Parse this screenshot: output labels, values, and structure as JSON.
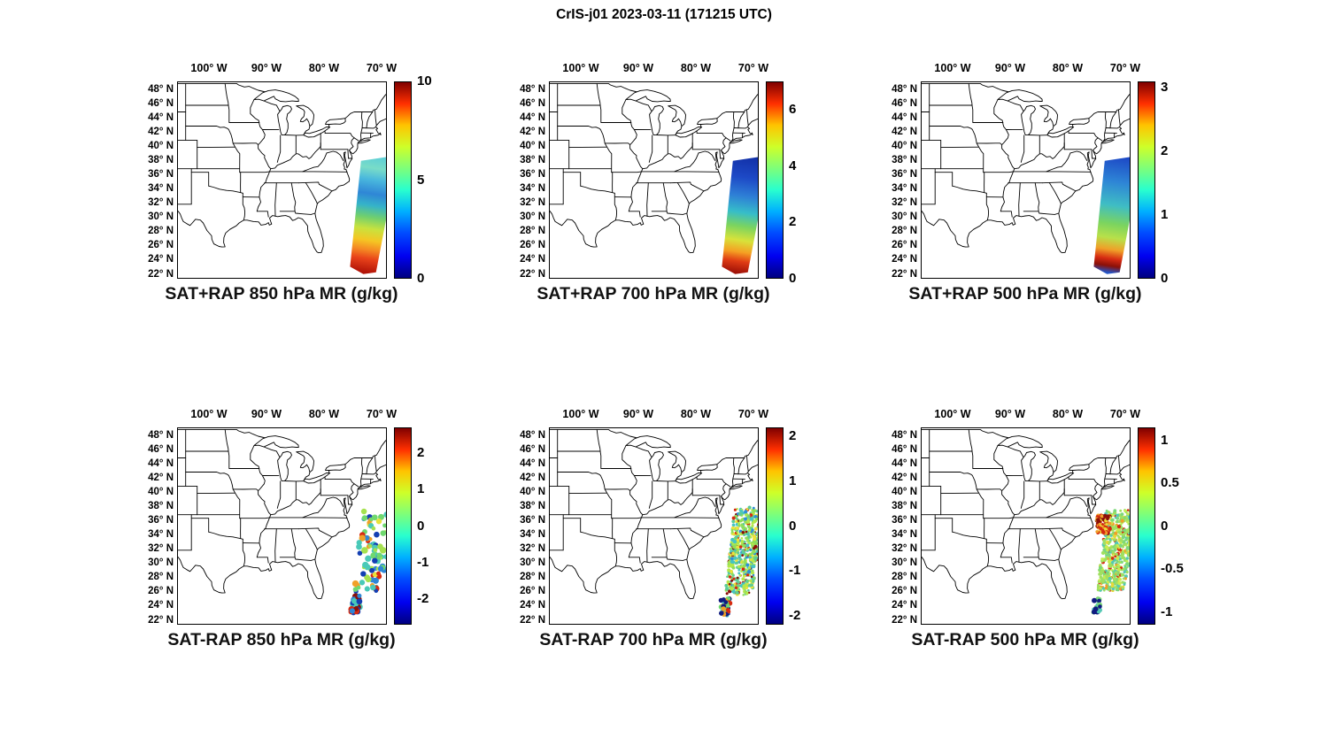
{
  "figure_title": "CrIS-j01 2023-03-11 (171215 UTC)",
  "colormap": "jet",
  "axes": {
    "x_ticks": [
      {
        "lon": -100,
        "label": "100° W"
      },
      {
        "lon": -90,
        "label": "90° W"
      },
      {
        "lon": -80,
        "label": "80° W"
      },
      {
        "lon": -70,
        "label": "70° W"
      }
    ],
    "y_ticks": [
      {
        "lat": 48,
        "label": "48° N"
      },
      {
        "lat": 46,
        "label": "46° N"
      },
      {
        "lat": 44,
        "label": "44° N"
      },
      {
        "lat": 42,
        "label": "42° N"
      },
      {
        "lat": 40,
        "label": "40° N"
      },
      {
        "lat": 38,
        "label": "38° N"
      },
      {
        "lat": 36,
        "label": "36° N"
      },
      {
        "lat": 34,
        "label": "34° N"
      },
      {
        "lat": 32,
        "label": "32° N"
      },
      {
        "lat": 30,
        "label": "30° N"
      },
      {
        "lat": 28,
        "label": "28° N"
      },
      {
        "lat": 26,
        "label": "26° N"
      },
      {
        "lat": 24,
        "label": "24° N"
      },
      {
        "lat": 22,
        "label": "22° N"
      }
    ]
  },
  "panels": [
    {
      "id": "sat-plus-rap-850",
      "label": "SAT+RAP 850 hPa MR (g/kg)",
      "colorbar": {
        "min": 0,
        "max": 10,
        "ticks": [
          {
            "value": 10,
            "label": "10"
          },
          {
            "value": 5,
            "label": "5"
          },
          {
            "value": 0,
            "label": "0"
          }
        ]
      },
      "swath": {
        "render": "gradient",
        "stops": [
          [
            0,
            "#5ecfd6"
          ],
          [
            0.1,
            "#79dcc8"
          ],
          [
            0.2,
            "#49b7dd"
          ],
          [
            0.32,
            "#2f86d6"
          ],
          [
            0.42,
            "#35b3c9"
          ],
          [
            0.52,
            "#6fcf6f"
          ],
          [
            0.62,
            "#c8e23e"
          ],
          [
            0.72,
            "#f5c623"
          ],
          [
            0.8,
            "#f58a23"
          ],
          [
            0.88,
            "#e8421a"
          ],
          [
            1,
            "#b01207"
          ]
        ]
      }
    },
    {
      "id": "sat-plus-rap-700",
      "label": "SAT+RAP 700 hPa MR (g/kg)",
      "colorbar": {
        "min": 0,
        "max": 7,
        "ticks": [
          {
            "value": 6,
            "label": "6"
          },
          {
            "value": 4,
            "label": "4"
          },
          {
            "value": 2,
            "label": "2"
          },
          {
            "value": 0,
            "label": "0"
          }
        ]
      },
      "swath": {
        "render": "gradient",
        "stops": [
          [
            0,
            "#1231a8"
          ],
          [
            0.18,
            "#1d49c6"
          ],
          [
            0.34,
            "#2e7fd6"
          ],
          [
            0.48,
            "#36bdc9"
          ],
          [
            0.6,
            "#7bd45f"
          ],
          [
            0.72,
            "#d8e23a"
          ],
          [
            0.82,
            "#f5a023"
          ],
          [
            0.9,
            "#e03c14"
          ],
          [
            1,
            "#a01108"
          ]
        ]
      }
    },
    {
      "id": "sat-plus-rap-500",
      "label": "SAT+RAP 500 hPa MR (g/kg)",
      "colorbar": {
        "min": 0,
        "max": 3.1,
        "ticks": [
          {
            "value": 3,
            "label": "3"
          },
          {
            "value": 2,
            "label": "2"
          },
          {
            "value": 1,
            "label": "1"
          },
          {
            "value": 0,
            "label": "0"
          }
        ]
      },
      "swath": {
        "render": "gradient",
        "stops": [
          [
            0,
            "#1d49c6"
          ],
          [
            0.22,
            "#2e86d6"
          ],
          [
            0.42,
            "#3fbdc4"
          ],
          [
            0.58,
            "#7bd45f"
          ],
          [
            0.7,
            "#b8e04a"
          ],
          [
            0.8,
            "#f0a028"
          ],
          [
            0.88,
            "#d62a12"
          ],
          [
            0.94,
            "#8a1008"
          ],
          [
            1,
            "#2356c9"
          ]
        ]
      }
    },
    {
      "id": "sat-minus-rap-850",
      "label": "SAT-RAP 850 hPa MR (g/kg)",
      "colorbar": {
        "min": -2.7,
        "max": 2.7,
        "ticks": [
          {
            "value": 2,
            "label": "2"
          },
          {
            "value": 1,
            "label": "1"
          },
          {
            "value": 0,
            "label": "0"
          },
          {
            "value": -1,
            "label": "-1"
          },
          {
            "value": -2,
            "label": "-2"
          }
        ]
      },
      "swath": {
        "render": "dots",
        "seed": 7,
        "field": {
          "count": 95,
          "radius": 2.9,
          "t_range": [
            0.05,
            0.78
          ],
          "palette": [
            [
              "#6fd86f",
              26
            ],
            [
              "#49c9b8",
              18
            ],
            [
              "#a5e14e",
              14
            ],
            [
              "#2f86d6",
              12
            ],
            [
              "#143fb3",
              9
            ],
            [
              "#e8e23a",
              9
            ],
            [
              "#f0a028",
              6
            ],
            [
              "#d62a12",
              6
            ]
          ]
        },
        "patches": [
          {
            "lat": [
              23.2,
              25.6
            ],
            "lon": [
              -75.3,
              -73.7
            ],
            "count": 30,
            "radius": 3.1,
            "palette": [
              [
                "#d62a12",
                26
              ],
              [
                "#8a1008",
                18
              ],
              [
                "#143fb3",
                16
              ],
              [
                "#2f86d6",
                10
              ],
              [
                "#49c9b8",
                15
              ],
              [
                "#6fd86f",
                15
              ]
            ]
          }
        ]
      }
    },
    {
      "id": "sat-minus-rap-700",
      "label": "SAT-RAP 700 hPa MR (g/kg)",
      "colorbar": {
        "min": -2.2,
        "max": 2.2,
        "ticks": [
          {
            "value": 2,
            "label": "2"
          },
          {
            "value": 1,
            "label": "1"
          },
          {
            "value": 0,
            "label": "0"
          },
          {
            "value": -1,
            "label": "-1"
          },
          {
            "value": -2,
            "label": "-2"
          }
        ]
      },
      "swath": {
        "render": "dots",
        "seed": 21,
        "field": {
          "count": 560,
          "radius": 1.7,
          "t_range": [
            0.02,
            0.8
          ],
          "palette": [
            [
              "#8ede5a",
              26
            ],
            [
              "#b4e84a",
              18
            ],
            [
              "#5ecc96",
              15
            ],
            [
              "#46c4c4",
              12
            ],
            [
              "#f0e03a",
              10
            ],
            [
              "#2e8fd8",
              7
            ],
            [
              "#8a1008",
              6
            ],
            [
              "#d42a10",
              6
            ]
          ]
        },
        "patches": [
          {
            "lat": [
              22.8,
              25.2
            ],
            "lon": [
              -75.6,
              -74.0
            ],
            "count": 46,
            "radius": 2.5,
            "palette": [
              [
                "#101b80",
                25
              ],
              [
                "#d62a12",
                20
              ],
              [
                "#f0a028",
                12
              ],
              [
                "#6fd86f",
                23
              ],
              [
                "#46c4c4",
                20
              ]
            ]
          }
        ]
      }
    },
    {
      "id": "sat-minus-rap-500",
      "label": "SAT-RAP 500 hPa MR (g/kg)",
      "colorbar": {
        "min": -1.15,
        "max": 1.15,
        "ticks": [
          {
            "value": 1,
            "label": "1"
          },
          {
            "value": 0.5,
            "label": "0.5"
          },
          {
            "value": 0,
            "label": "0"
          },
          {
            "value": -0.5,
            "label": "-0.5"
          },
          {
            "value": -1,
            "label": "-1"
          }
        ]
      },
      "swath": {
        "render": "dots",
        "seed": 33,
        "field": {
          "count": 560,
          "radius": 1.7,
          "t_range": [
            0.04,
            0.76
          ],
          "palette": [
            [
              "#a0e060",
              32
            ],
            [
              "#7cd87a",
              20
            ],
            [
              "#c8ec50",
              16
            ],
            [
              "#54c8b4",
              12
            ],
            [
              "#e8d838",
              9
            ],
            [
              "#f0a028",
              6
            ],
            [
              "#d42a10",
              5
            ]
          ]
        },
        "patches": [
          {
            "lat": [
              34.3,
              36.9
            ],
            "lon": [
              -74.9,
              -72.6
            ],
            "count": 85,
            "radius": 2.0,
            "palette": [
              [
                "#d42a10",
                40
              ],
              [
                "#8a1008",
                22
              ],
              [
                "#f0a028",
                24
              ],
              [
                "#e8d838",
                14
              ]
            ]
          },
          {
            "lat": [
              23.2,
              25.2
            ],
            "lon": [
              -75.5,
              -74.2
            ],
            "count": 18,
            "radius": 2.7,
            "palette": [
              [
                "#101b80",
                45
              ],
              [
                "#54c8b4",
                25
              ],
              [
                "#7cd87a",
                30
              ]
            ]
          }
        ]
      }
    }
  ],
  "chart_data": {
    "type": "heatmap",
    "variant": "geographic satellite-swath maps, 2 rows x 3 columns",
    "title": "CrIS-j01 2023-03-11 (171215 UTC)",
    "colormap": "jet",
    "map_extent": {
      "lon": [
        -105.5,
        -69.0
      ],
      "lat": [
        21.5,
        49.3
      ]
    },
    "x_tick_labels": [
      "100° W",
      "90° W",
      "80° W",
      "70° W"
    ],
    "y_tick_labels": [
      "48° N",
      "46° N",
      "44° N",
      "42° N",
      "40° N",
      "38° N",
      "36° N",
      "34° N",
      "32° N",
      "30° N",
      "28° N",
      "26° N",
      "24° N",
      "22° N"
    ],
    "swath_location": "Atlantic Ocean off the US East Coast, tilted band from ~38N,73.5W down to ~22.5N,75W",
    "panels": [
      {
        "title": "SAT+RAP 850 hPa MR (g/kg)",
        "product": "SAT+RAP",
        "level_hPa": 850,
        "quantity": "water vapor mixing ratio",
        "units": "g/kg",
        "colorbar_range": [
          0,
          10
        ],
        "colorbar_ticks": [
          0,
          5,
          10
        ],
        "approx_values_by_lat": [
          {
            "lat_band": [
              36,
              38
            ],
            "value": 4.0
          },
          {
            "lat_band": [
              33,
              36
            ],
            "value": 3.0
          },
          {
            "lat_band": [
              30,
              33
            ],
            "value": 5.5
          },
          {
            "lat_band": [
              27,
              30
            ],
            "value": 7.0
          },
          {
            "lat_band": [
              24,
              27
            ],
            "value": 8.5
          },
          {
            "lat_band": [
              22.5,
              24
            ],
            "value": 9.5
          }
        ]
      },
      {
        "title": "SAT+RAP 700 hPa MR (g/kg)",
        "product": "SAT+RAP",
        "level_hPa": 700,
        "quantity": "water vapor mixing ratio",
        "units": "g/kg",
        "colorbar_range": [
          0,
          7
        ],
        "colorbar_ticks": [
          0,
          2,
          4,
          6
        ],
        "approx_values_by_lat": [
          {
            "lat_band": [
              35,
              38
            ],
            "value": 1.2
          },
          {
            "lat_band": [
              32,
              35
            ],
            "value": 2.5
          },
          {
            "lat_band": [
              29,
              32
            ],
            "value": 3.8
          },
          {
            "lat_band": [
              26,
              29
            ],
            "value": 4.8
          },
          {
            "lat_band": [
              24,
              26
            ],
            "value": 5.8
          },
          {
            "lat_band": [
              22.5,
              24
            ],
            "value": 6.5
          }
        ]
      },
      {
        "title": "SAT+RAP 500 hPa MR (g/kg)",
        "product": "SAT+RAP",
        "level_hPa": 500,
        "quantity": "water vapor mixing ratio",
        "units": "g/kg",
        "colorbar_range": [
          0,
          3.1
        ],
        "colorbar_ticks": [
          0,
          1,
          2,
          3
        ],
        "approx_values_by_lat": [
          {
            "lat_band": [
              35,
              38
            ],
            "value": 0.8
          },
          {
            "lat_band": [
              32,
              35
            ],
            "value": 1.2
          },
          {
            "lat_band": [
              29,
              32
            ],
            "value": 1.6
          },
          {
            "lat_band": [
              26,
              29
            ],
            "value": 2.1
          },
          {
            "lat_band": [
              24,
              26
            ],
            "value": 2.7
          },
          {
            "lat_band": [
              22.5,
              24
            ],
            "value": 0.6
          }
        ]
      },
      {
        "title": "SAT-RAP 850 hPa MR (g/kg)",
        "product": "SAT-RAP (difference)",
        "level_hPa": 850,
        "quantity": "mixing ratio difference",
        "units": "g/kg",
        "colorbar_range": [
          -2.7,
          2.7
        ],
        "colorbar_ticks": [
          -2,
          -1,
          0,
          1,
          2
        ],
        "approx_values_by_lat": [
          {
            "lat_band": [
              27,
              38
            ],
            "value": 0.1
          },
          {
            "lat_band": [
              26,
              27
            ],
            "value": -0.3
          },
          {
            "lat_band": [
              23,
              26
            ],
            "value_range": [
              -2.5,
              2.5
            ]
          }
        ],
        "description": "sparse scattered dots, mostly -0.5..+0.5 (green/cyan) with a few ~-1.5 (blue); dense mixed red/blue cluster near 23-26N"
      },
      {
        "title": "SAT-RAP 700 hPa MR (g/kg)",
        "product": "SAT-RAP (difference)",
        "level_hPa": 700,
        "quantity": "mixing ratio difference",
        "units": "g/kg",
        "colorbar_range": [
          -2.2,
          2.2
        ],
        "colorbar_ticks": [
          -2,
          -1,
          0,
          1,
          2
        ],
        "approx_values_by_lat": [
          {
            "lat_band": [
              26,
              38
            ],
            "value": 0.3
          },
          {
            "lat_band": [
              33,
              35
            ],
            "value_range": [
              1.5,
              2.0
            ]
          },
          {
            "lat_band": [
              23,
              25
            ],
            "value_range": [
              -2.0,
              1.5
            ]
          }
        ],
        "description": "speckled field mostly 0..+0.5 (green/yellow-green) with dark-red streaks near 34N; cluster near 23-25N including ~-2 (dark blue)"
      },
      {
        "title": "SAT-RAP 500 hPa MR (g/kg)",
        "product": "SAT-RAP (difference)",
        "level_hPa": 500,
        "quantity": "mixing ratio difference",
        "units": "g/kg",
        "colorbar_range": [
          -1.15,
          1.15
        ],
        "colorbar_ticks": [
          -1,
          -0.5,
          0,
          0.5,
          1
        ],
        "approx_values_by_lat": [
          {
            "lat_band": [
              27,
              34
            ],
            "value": 0.1
          },
          {
            "lat_band": [
              34.5,
              37
            ],
            "value_range": [
              0.7,
              1.1
            ]
          },
          {
            "lat_band": [
              23,
              25.5
            ],
            "value_range": [
              -1.1,
              0.2
            ]
          }
        ],
        "description": "mostly light green ~+0.1; red patch ~+1 near 34.5-37N; dark blue ~-1.1 dot near 24.5N"
      }
    ]
  }
}
